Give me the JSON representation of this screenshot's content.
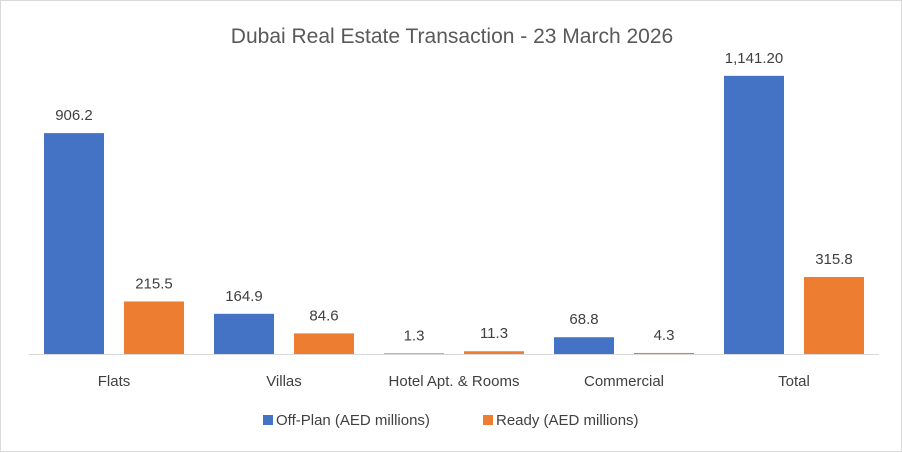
{
  "chart_data": {
    "type": "bar",
    "title": "Dubai Real Estate Transaction  - 23 March 2026",
    "categories": [
      "Flats",
      "Villas",
      "Hotel Apt. & Rooms",
      "Commercial",
      "Total"
    ],
    "series": [
      {
        "name": "Off-Plan (AED millions)",
        "color": "#4472C4",
        "values": [
          906.2,
          164.9,
          1.3,
          68.8,
          1141.2
        ],
        "labels": [
          "906.2",
          "164.9",
          "1.3",
          "68.8",
          "1,141.20"
        ]
      },
      {
        "name": "Ready (AED millions)",
        "color": "#ED7D31",
        "values": [
          215.5,
          84.6,
          11.3,
          4.3,
          315.8
        ],
        "labels": [
          "215.5",
          "84.6",
          "11.3",
          "4.3",
          "315.8"
        ]
      }
    ],
    "ylim": [
      0,
      1200
    ],
    "grid": false,
    "legend": "bottom"
  }
}
